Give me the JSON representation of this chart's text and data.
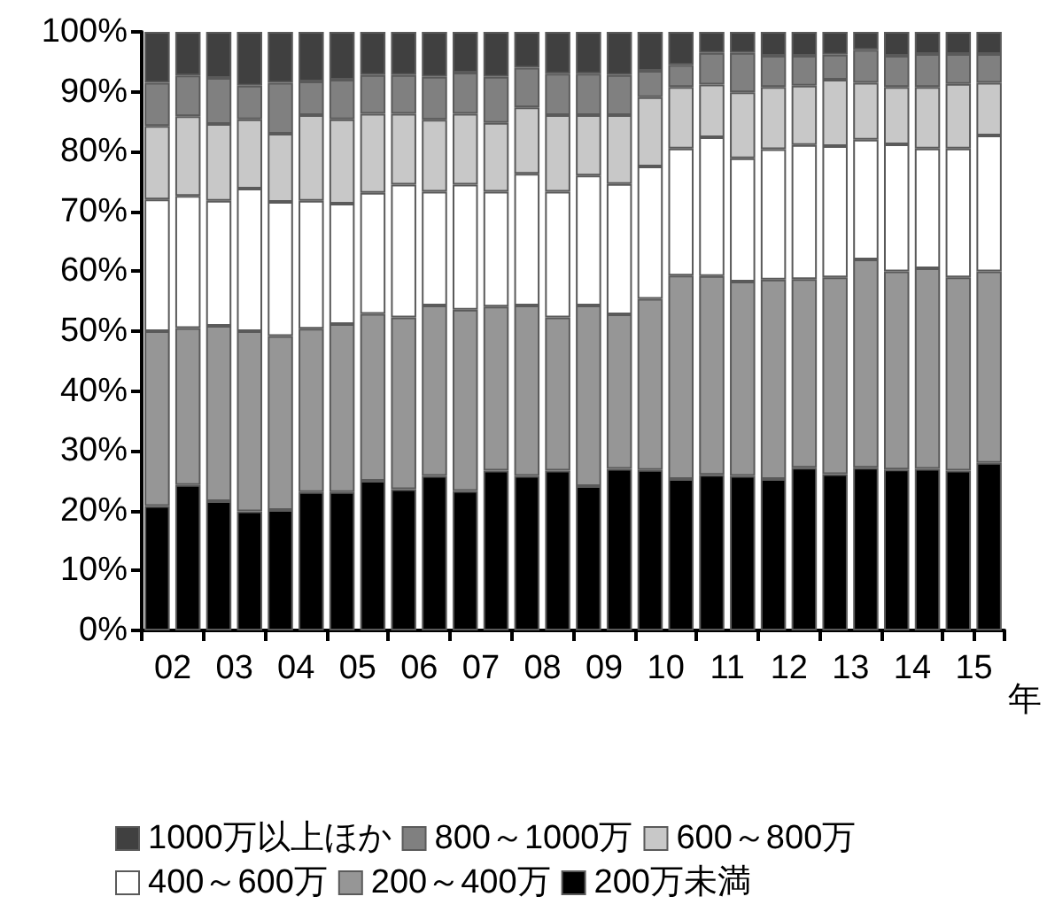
{
  "chart_data": {
    "type": "bar",
    "stacked": true,
    "xlabel": "年",
    "categories": [
      "02",
      null,
      "03",
      null,
      "04",
      null,
      "05",
      null,
      "06",
      null,
      "07",
      null,
      "08",
      null,
      "09",
      null,
      "10",
      null,
      "11",
      null,
      "12",
      null,
      "13",
      null,
      "14",
      null,
      "15",
      null
    ],
    "series": [
      {
        "name": "200万未満",
        "color": "#000000",
        "values": [
          20.8,
          24.3,
          21.6,
          19.9,
          20.1,
          23.1,
          23.1,
          25.0,
          23.6,
          25.8,
          23.3,
          26.7,
          25.8,
          26.7,
          24.1,
          27.0,
          26.8,
          25.3,
          26.0,
          25.8,
          25.3,
          27.2,
          26.1,
          27.2,
          26.9,
          27.0,
          26.7,
          28.0
        ]
      },
      {
        "name": "200～400万",
        "color": "#969696",
        "values": [
          29.2,
          26.2,
          29.3,
          30.1,
          29.1,
          27.3,
          28.1,
          27.9,
          28.7,
          28.5,
          30.3,
          27.4,
          28.5,
          25.6,
          30.2,
          25.8,
          28.6,
          34.0,
          33.2,
          32.5,
          33.3,
          31.5,
          32.9,
          34.8,
          33.1,
          33.5,
          32.3,
          32.0
        ]
      },
      {
        "name": "400～600万",
        "color": "#ffffff",
        "values": [
          22.0,
          22.1,
          20.9,
          23.8,
          22.4,
          21.4,
          20.1,
          20.2,
          22.2,
          19.0,
          20.9,
          19.2,
          22.0,
          21.0,
          21.7,
          21.8,
          22.1,
          21.2,
          23.2,
          20.6,
          21.8,
          22.4,
          21.9,
          20.0,
          21.2,
          20.0,
          21.5,
          22.7
        ]
      },
      {
        "name": "600～800万",
        "color": "#c8c8c8",
        "values": [
          12.3,
          13.3,
          12.8,
          11.6,
          11.4,
          14.3,
          14.1,
          13.2,
          11.8,
          12.0,
          11.8,
          11.5,
          11.1,
          12.8,
          10.1,
          11.5,
          11.6,
          10.3,
          8.8,
          11.0,
          10.4,
          9.9,
          11.1,
          9.5,
          9.6,
          10.3,
          10.8,
          8.8
        ]
      },
      {
        "name": "800～1000万",
        "color": "#808080",
        "values": [
          7.2,
          6.8,
          7.7,
          5.6,
          8.5,
          5.6,
          6.6,
          6.5,
          6.5,
          7.2,
          6.9,
          7.7,
          6.6,
          6.9,
          6.9,
          6.7,
          4.4,
          3.7,
          5.3,
          6.6,
          5.2,
          5.0,
          4.2,
          5.5,
          5.2,
          5.5,
          5.0,
          4.8
        ]
      },
      {
        "name": "1000万以上ほか",
        "color": "#404040",
        "values": [
          8.5,
          7.3,
          7.7,
          9.0,
          8.5,
          8.3,
          8.0,
          7.2,
          7.2,
          7.5,
          6.8,
          7.5,
          6.0,
          7.0,
          7.0,
          7.2,
          6.5,
          5.5,
          3.5,
          3.5,
          4.0,
          4.0,
          3.8,
          3.0,
          4.0,
          3.7,
          3.7,
          3.7
        ]
      }
    ],
    "ylim": [
      0,
      100
    ],
    "yticks": [
      {
        "value": 0,
        "label": "0%"
      },
      {
        "value": 10,
        "label": "10%"
      },
      {
        "value": 20,
        "label": "20%"
      },
      {
        "value": 30,
        "label": "30%"
      },
      {
        "value": 40,
        "label": "40%"
      },
      {
        "value": 50,
        "label": "50%"
      },
      {
        "value": 60,
        "label": "60%"
      },
      {
        "value": 70,
        "label": "70%"
      },
      {
        "value": 80,
        "label": "80%"
      },
      {
        "value": 90,
        "label": "90%"
      },
      {
        "value": 100,
        "label": "100%"
      }
    ],
    "legend": "bottom",
    "grid": false
  }
}
